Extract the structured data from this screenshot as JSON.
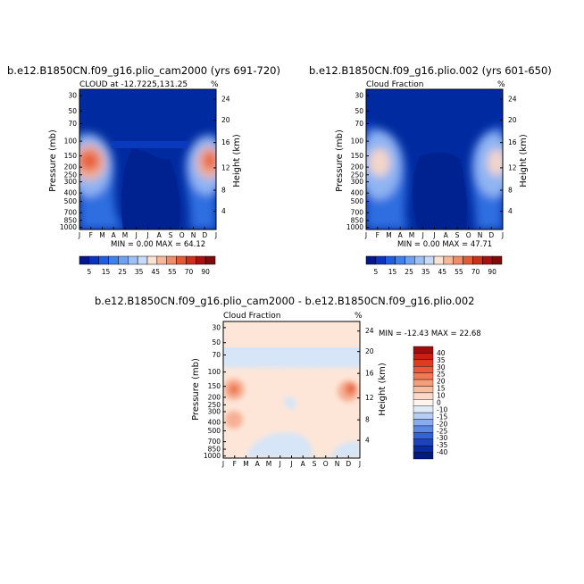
{
  "chart_data": [
    {
      "type": "heatmap",
      "title": "b.e12.B1850CN.f09_g16.plio_cam2000 (yrs 691-720)",
      "subtitle": "CLOUD at -12.7225,131.25",
      "units": "%",
      "xlabel": "",
      "ylabel": "Pressure (mb)",
      "ylabel_right": "Height (km)",
      "x_ticks": [
        "J",
        "F",
        "M",
        "A",
        "M",
        "J",
        "J",
        "A",
        "S",
        "O",
        "N",
        "D",
        "J"
      ],
      "y_ticks": [
        "30",
        "50",
        "70",
        "100",
        "150",
        "200",
        "250",
        "300",
        "400",
        "500",
        "700",
        "850",
        "1000"
      ],
      "y_ticks_right": [
        "24",
        "20",
        "16",
        "12",
        "8",
        "4"
      ],
      "stats": "MIN =   0.00 MAX =  64.12",
      "colorbar": [
        "5",
        "15",
        "25",
        "35",
        "45",
        "55",
        "70",
        "90"
      ]
    },
    {
      "type": "heatmap",
      "title": "b.e12.B1850CN.f09_g16.plio.002 (yrs 601-650)",
      "subtitle": "Cloud Fraction",
      "units": "%",
      "xlabel": "",
      "ylabel": "Pressure (mb)",
      "ylabel_right": "Height (km)",
      "x_ticks": [
        "J",
        "F",
        "M",
        "A",
        "M",
        "J",
        "J",
        "A",
        "S",
        "O",
        "N",
        "D",
        "J"
      ],
      "y_ticks": [
        "30",
        "50",
        "70",
        "100",
        "150",
        "200",
        "250",
        "300",
        "400",
        "500",
        "700",
        "850",
        "1000"
      ],
      "y_ticks_right": [
        "24",
        "20",
        "16",
        "12",
        "8",
        "4"
      ],
      "stats": "MIN =   0.00 MAX =  47.71",
      "colorbar": [
        "5",
        "15",
        "25",
        "35",
        "45",
        "55",
        "70",
        "90"
      ]
    },
    {
      "type": "heatmap",
      "title": "b.e12.B1850CN.f09_g16.plio_cam2000 - b.e12.B1850CN.f09_g16.plio.002",
      "subtitle": "Cloud Fraction",
      "units": "%",
      "xlabel": "",
      "ylabel": "Pressure (mb)",
      "ylabel_right": "Height (km)",
      "x_ticks": [
        "J",
        "F",
        "M",
        "A",
        "M",
        "J",
        "J",
        "A",
        "S",
        "O",
        "N",
        "D",
        "J"
      ],
      "y_ticks": [
        "30",
        "50",
        "70",
        "100",
        "150",
        "200",
        "250",
        "300",
        "400",
        "500",
        "700",
        "850",
        "1000"
      ],
      "y_ticks_right": [
        "24",
        "20",
        "16",
        "12",
        "8",
        "4"
      ],
      "stats": "MIN = -12.43 MAX =  22.68",
      "colorbar": [
        "40",
        "35",
        "30",
        "25",
        "20",
        "15",
        "10",
        "0",
        "-10",
        "-15",
        "-20",
        "-25",
        "-30",
        "-35",
        "-40"
      ]
    }
  ]
}
